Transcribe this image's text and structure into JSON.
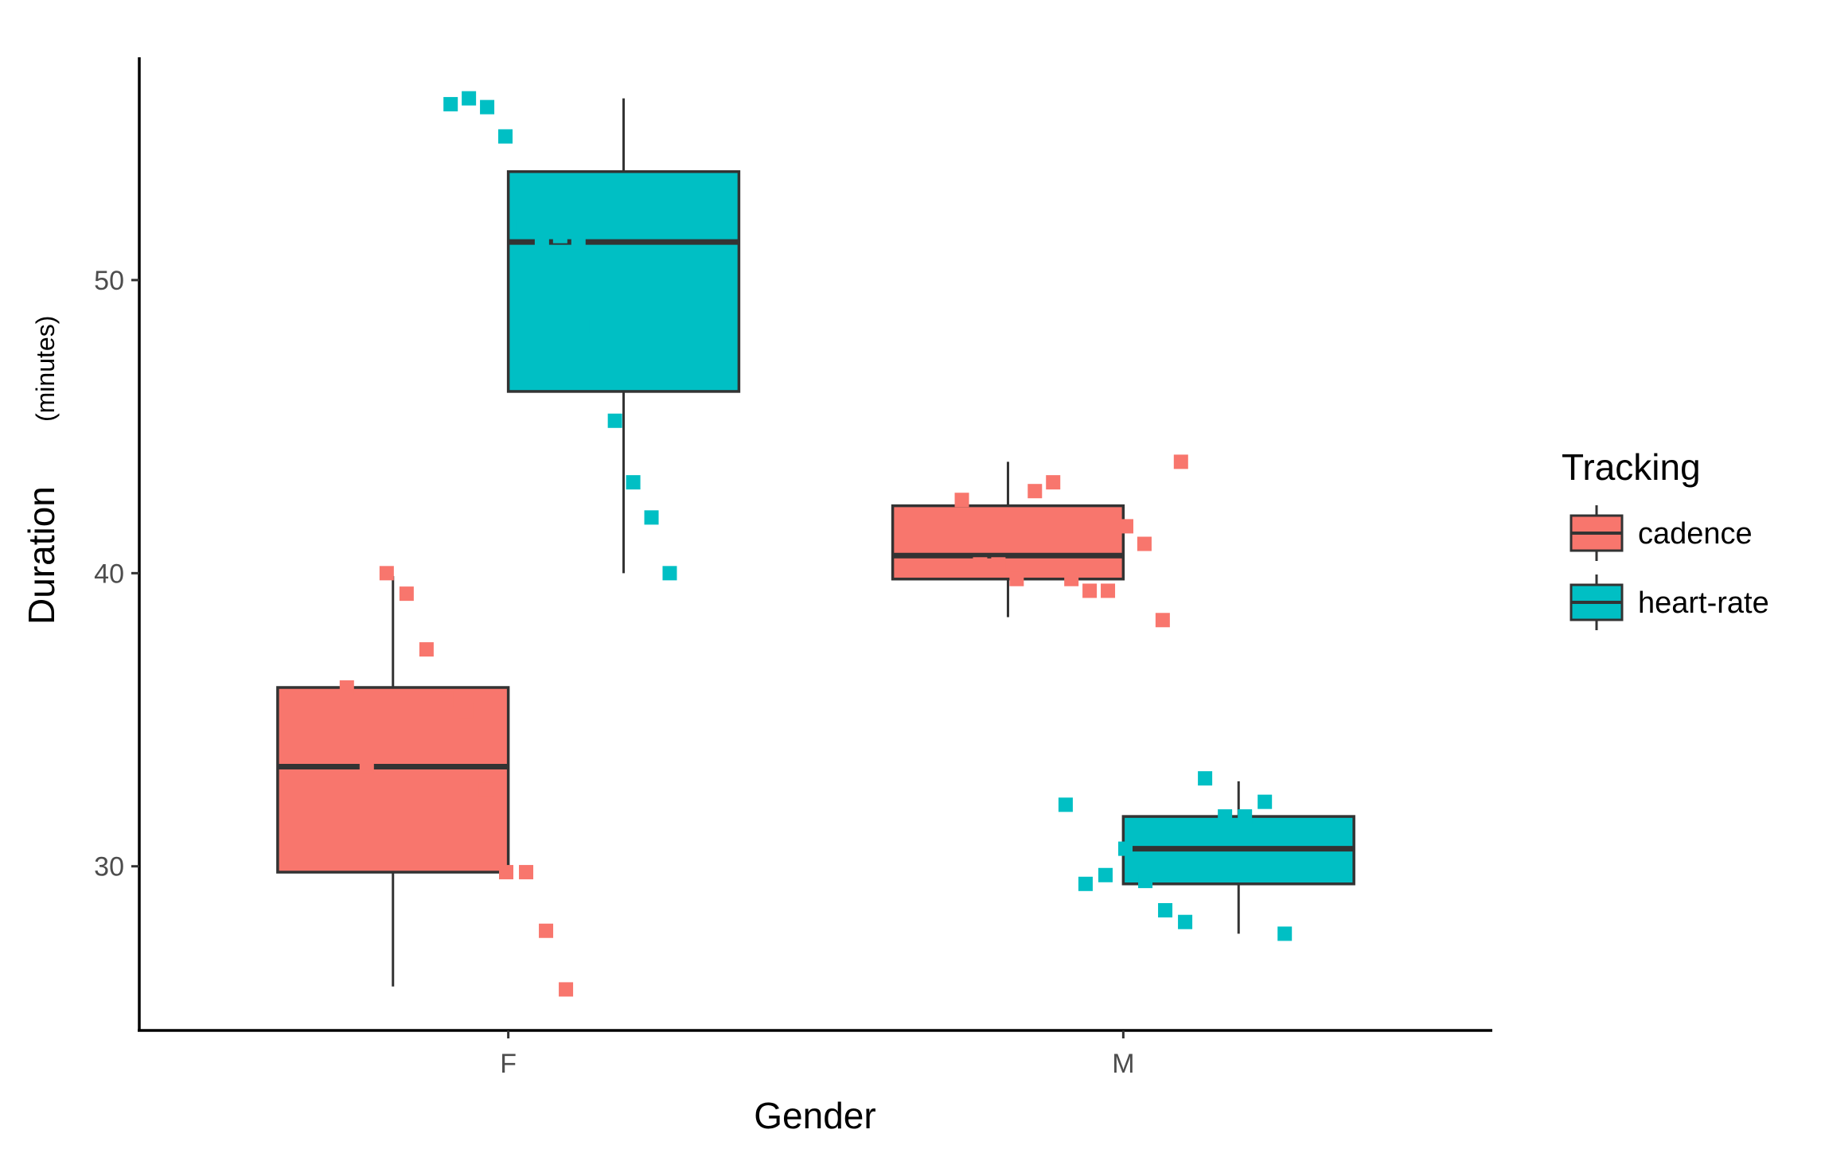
{
  "chart_data": {
    "type": "boxplot",
    "title": "",
    "xlabel": "Gender",
    "ylabel": "Duration",
    "ylabel_unit": "(minutes)",
    "categories": [
      "F",
      "M"
    ],
    "yticks": [
      30,
      40,
      50
    ],
    "ylim": [
      24.4,
      57.6
    ],
    "legend": {
      "title": "Tracking",
      "position": "right",
      "entries": [
        "cadence",
        "heart-rate"
      ]
    },
    "colors": {
      "cadence": "#F8766D",
      "heart-rate": "#00BFC4",
      "outline": "#333333"
    },
    "series": [
      {
        "name": "cadence",
        "boxes": [
          {
            "category": "F",
            "whisker_low": 25.9,
            "q1": 29.8,
            "median": 33.4,
            "q3": 36.1,
            "whisker_high": 39.9
          },
          {
            "category": "M",
            "whisker_low": 38.5,
            "q1": 39.8,
            "median": 40.6,
            "q3": 42.3,
            "whisker_high": 43.8
          }
        ],
        "points": [
          {
            "category": "F",
            "y": [
              36.1,
              33.4,
              40.0,
              39.3,
              37.4,
              35.7,
              35.3,
              32.6,
              29.8,
              29.8,
              27.8,
              25.8
            ]
          },
          {
            "category": "M",
            "y": [
              42.5,
              40.3,
              40.3,
              39.8,
              42.8,
              43.1,
              39.8,
              39.4,
              39.4,
              41.6,
              41.0,
              38.4,
              43.8
            ]
          }
        ]
      },
      {
        "name": "heart-rate",
        "boxes": [
          {
            "category": "F",
            "whisker_low": 40.0,
            "q1": 46.2,
            "median": 51.3,
            "q3": 53.7,
            "whisker_high": 56.2
          },
          {
            "category": "M",
            "whisker_low": 27.7,
            "q1": 29.4,
            "median": 30.6,
            "q3": 31.7,
            "whisker_high": 32.9
          }
        ],
        "points": [
          {
            "category": "F",
            "y": [
              56.0,
              56.2,
              55.9,
              54.9,
              51.8,
              51.4,
              51.5,
              51.3,
              48.4,
              45.2,
              43.1,
              41.9,
              40.0
            ]
          },
          {
            "category": "M",
            "y": [
              32.1,
              29.4,
              29.7,
              30.6,
              29.5,
              28.5,
              28.1,
              33.0,
              31.7,
              31.7,
              32.2,
              27.7
            ]
          }
        ]
      }
    ]
  }
}
